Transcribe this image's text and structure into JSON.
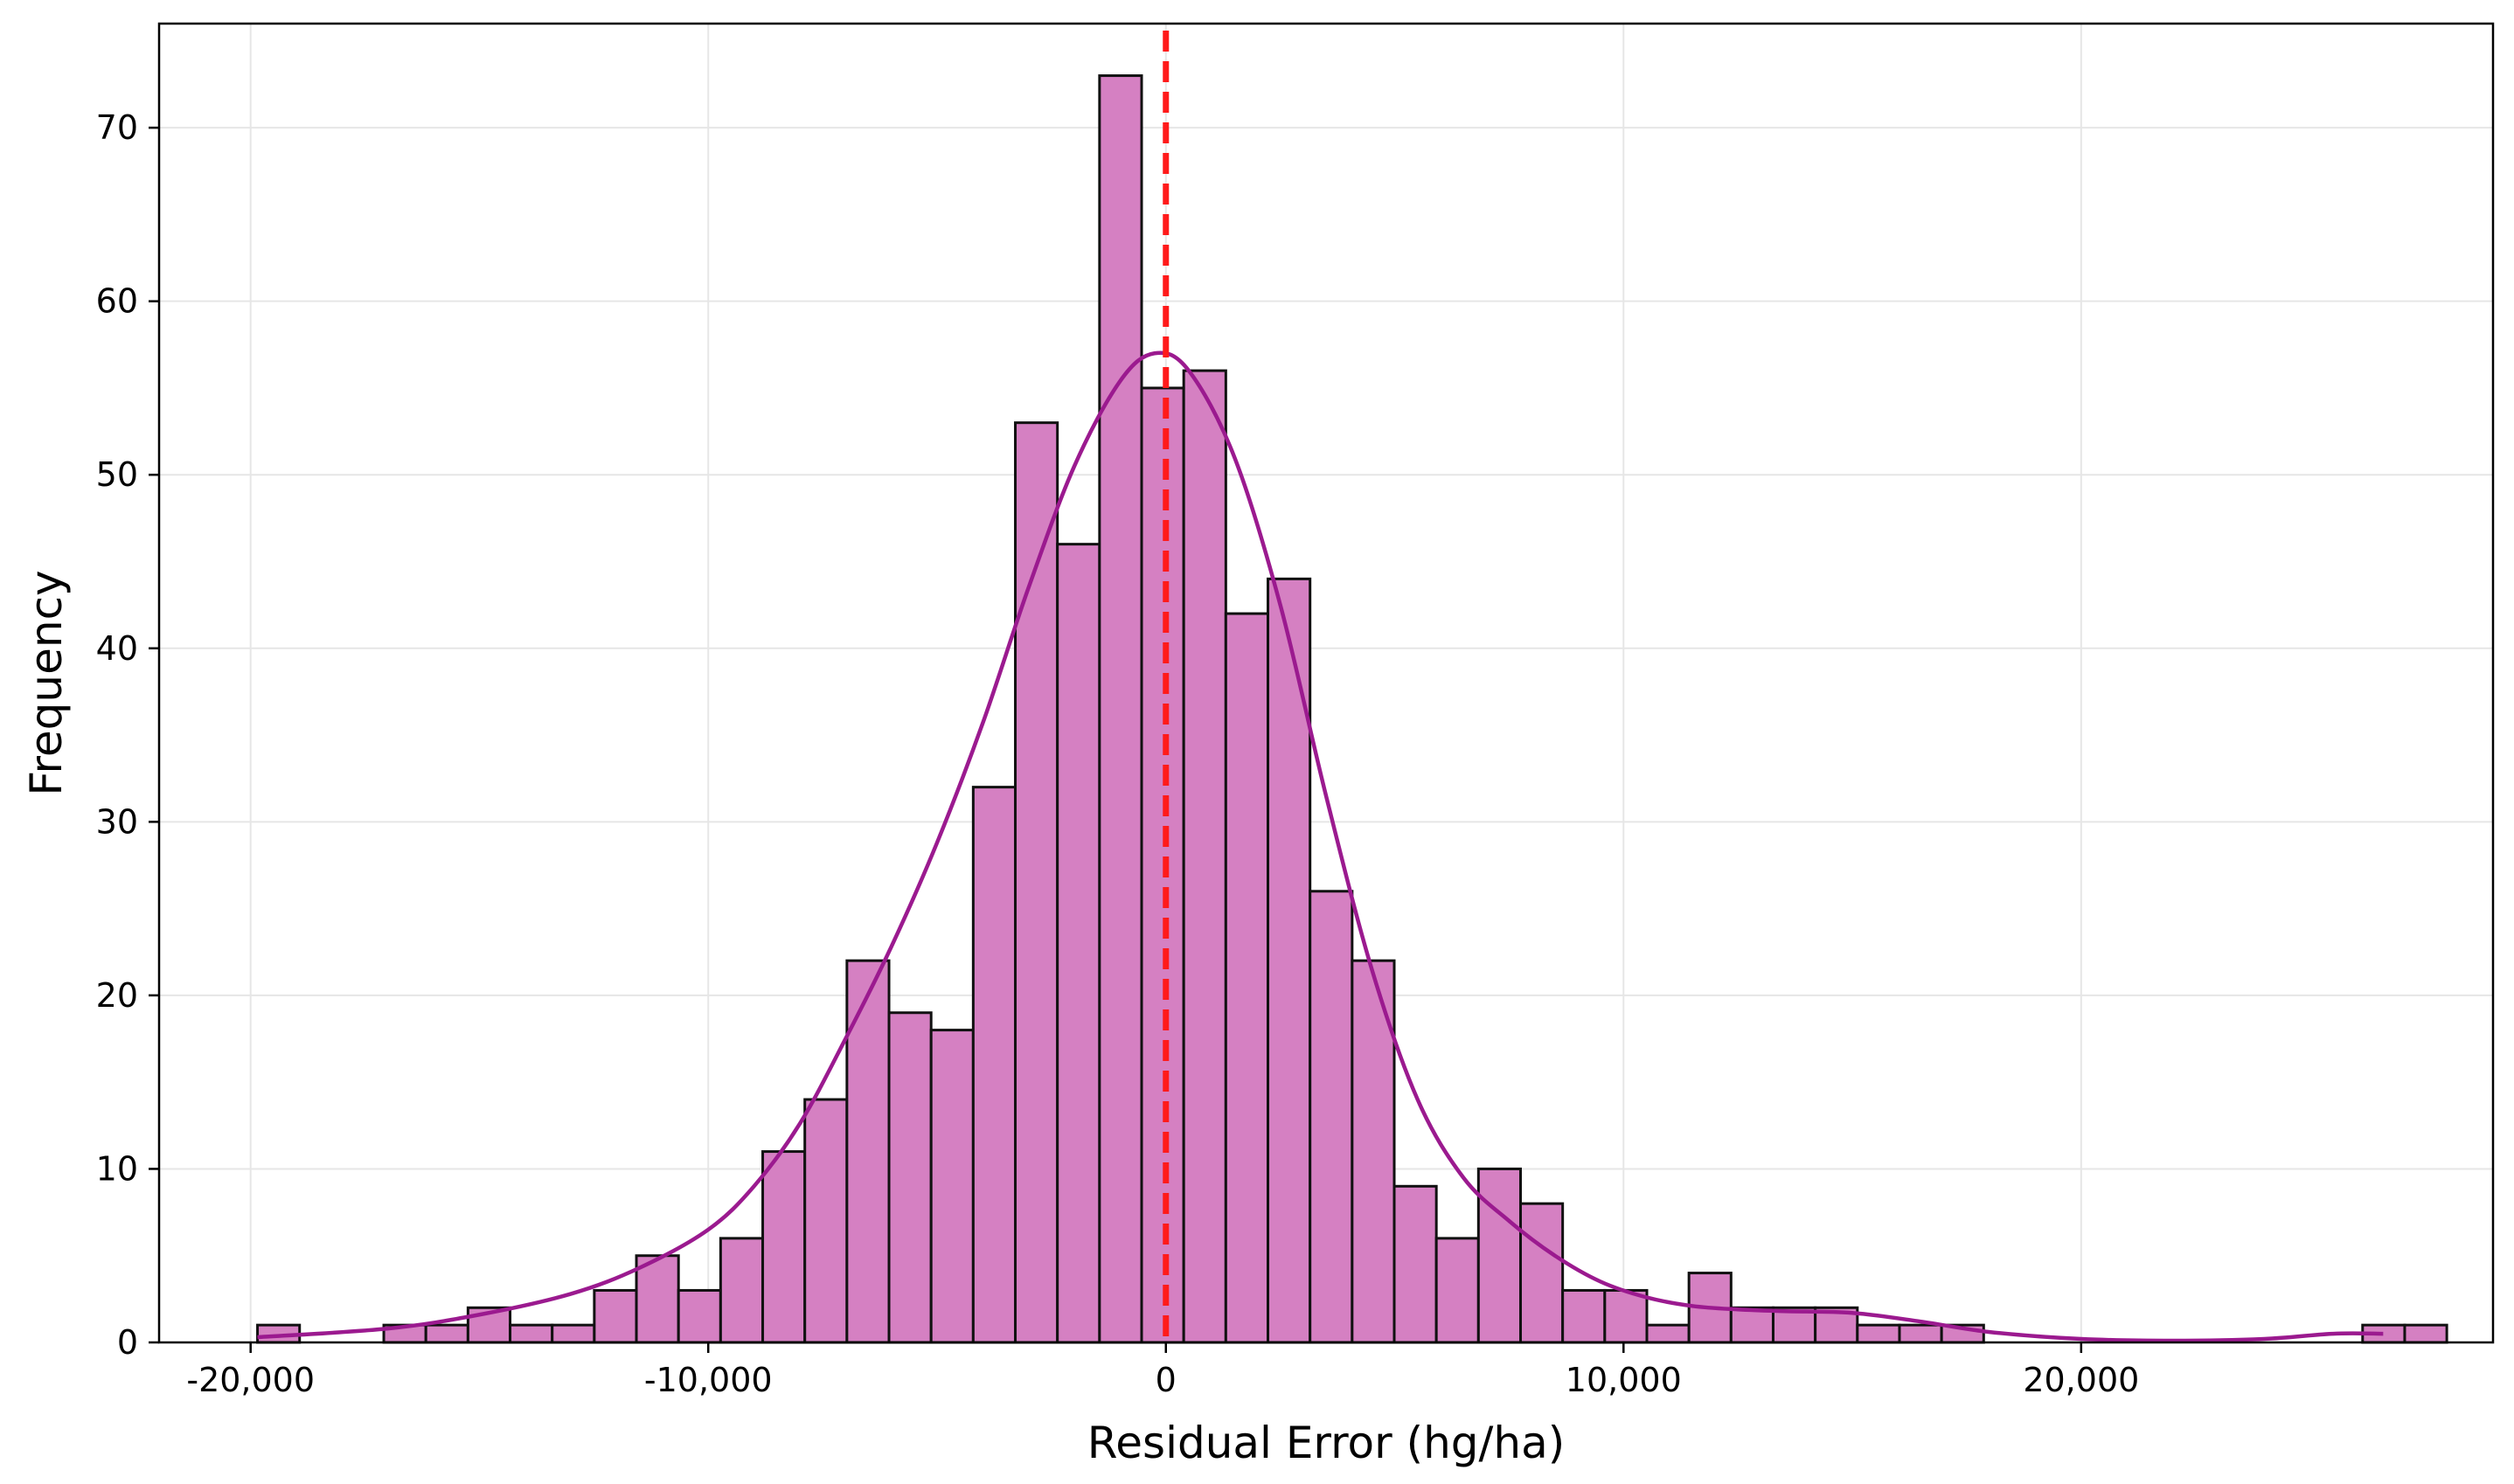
{
  "chart_data": {
    "type": "bar",
    "title": "",
    "xlabel": "Residual Error (hg/ha)",
    "ylabel": "Frequency",
    "xlim": [
      -22000,
      29000
    ],
    "ylim": [
      0,
      76
    ],
    "bin_width": 920,
    "bin_start": -19850,
    "values": [
      1,
      0,
      0,
      1,
      1,
      2,
      1,
      1,
      3,
      5,
      3,
      6,
      11,
      14,
      22,
      19,
      18,
      32,
      53,
      46,
      73,
      55,
      56,
      42,
      44,
      26,
      22,
      9,
      6,
      10,
      8,
      3,
      3,
      1,
      4,
      2,
      2,
      2,
      1,
      1,
      1,
      0,
      0,
      0,
      0,
      0,
      0,
      0,
      0,
      0,
      1,
      1
    ],
    "x_ticks": [
      -20000,
      -10000,
      0,
      10000,
      20000
    ],
    "x_tick_labels": [
      "-20,000",
      "-10,000",
      "0",
      "10,000",
      "20,000"
    ],
    "y_ticks": [
      0,
      10,
      20,
      30,
      40,
      50,
      60,
      70
    ],
    "y_tick_labels": [
      "0",
      "10",
      "20",
      "30",
      "40",
      "50",
      "60",
      "70"
    ],
    "kde": {
      "x": [
        -19850,
        -17000,
        -15000,
        -13000,
        -11500,
        -10000,
        -9000,
        -8000,
        -7000,
        -6000,
        -5000,
        -4000,
        -3000,
        -2000,
        -1000,
        -250,
        500,
        1500,
        2500,
        3500,
        4500,
        5500,
        6500,
        7500,
        8500,
        9500,
        10500,
        11500,
        12500,
        13500,
        15000,
        16500,
        18000,
        20000,
        22000,
        24000,
        25500,
        26600
      ],
      "y": [
        0.3,
        0.8,
        1.6,
        2.8,
        4.3,
        6.5,
        9.0,
        12.6,
        17.5,
        22.8,
        28.8,
        35.7,
        43.5,
        50.5,
        55.4,
        57.0,
        56.0,
        51.0,
        42.5,
        31.5,
        21.5,
        14.0,
        9.5,
        7.0,
        5.0,
        3.5,
        2.6,
        2.1,
        1.9,
        1.8,
        1.7,
        1.2,
        0.6,
        0.2,
        0.1,
        0.2,
        0.5,
        0.5
      ]
    },
    "reference_line": {
      "x": 0,
      "style": "dashed"
    },
    "grid": true,
    "legend": "none",
    "colors": {
      "bar_fill": "#d580c2",
      "bar_edge": "#111111",
      "kde_line": "#9b1a8f",
      "reference_line": "#ff1a1a",
      "grid": "#e6e6e6"
    }
  }
}
